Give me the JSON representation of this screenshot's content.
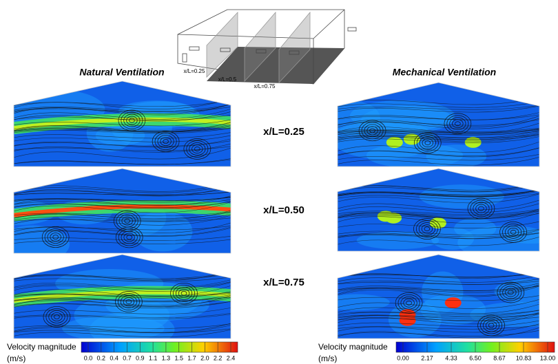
{
  "figure": {
    "top_labels": [
      "x/L=0.25",
      "x/L=0.5",
      "x/L=0.75"
    ],
    "left_title": "Natural Ventilation",
    "right_title": "Mechanical Ventilation",
    "sections": [
      "x/L=0.25",
      "x/L=0.50",
      "x/L=0.75"
    ],
    "colorbars": [
      {
        "title": "Velocity magnitude",
        "unit": "(m/s)",
        "ticks": [
          "0.0",
          "0.2",
          "0.4",
          "0.7",
          "0.9",
          "1.1",
          "1.3",
          "1.5",
          "1.7",
          "2.0",
          "2.2",
          "2.4"
        ]
      },
      {
        "title": "Velocity magnitude",
        "unit": "(m/s)",
        "ticks": [
          "0.00",
          "2.17",
          "4.33",
          "6.50",
          "8.67",
          "10.83",
          "13.00"
        ]
      }
    ]
  }
}
